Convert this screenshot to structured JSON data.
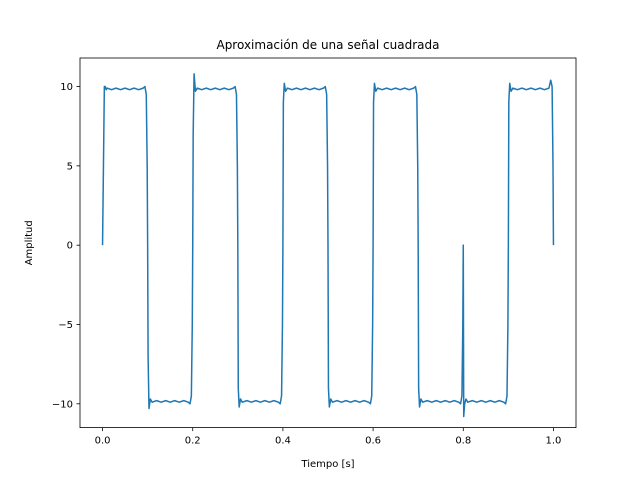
{
  "chart_data": {
    "type": "line",
    "title": "Aproximación de una señal cuadrada",
    "xlabel": "Tiempo [s]",
    "ylabel": "Amplitud",
    "xlim": [
      -0.05,
      1.05
    ],
    "ylim": [
      -11.5,
      11.8
    ],
    "xticks": [
      0.0,
      0.2,
      0.4,
      0.6,
      0.8,
      1.0
    ],
    "xtick_labels": [
      "0.0",
      "0.2",
      "0.4",
      "0.6",
      "0.8",
      "1.0"
    ],
    "yticks": [
      10,
      5,
      0,
      -5,
      -10
    ],
    "ytick_labels": [
      "10",
      "5",
      "0",
      "−5",
      "−10"
    ],
    "grid": false,
    "series": [
      {
        "color": "#1f77b4",
        "x": [
          0.0,
          0.002,
          0.004,
          0.006,
          0.008,
          0.01,
          0.02,
          0.03,
          0.04,
          0.05,
          0.06,
          0.07,
          0.08,
          0.09,
          0.094,
          0.097,
          0.099,
          0.1,
          0.101,
          0.103,
          0.106,
          0.11,
          0.12,
          0.13,
          0.14,
          0.15,
          0.16,
          0.17,
          0.18,
          0.19,
          0.194,
          0.197,
          0.199,
          0.2,
          0.201,
          0.203,
          0.206,
          0.21,
          0.22,
          0.23,
          0.24,
          0.25,
          0.26,
          0.27,
          0.28,
          0.29,
          0.294,
          0.297,
          0.299,
          0.3,
          0.301,
          0.303,
          0.306,
          0.31,
          0.32,
          0.33,
          0.34,
          0.35,
          0.36,
          0.37,
          0.38,
          0.39,
          0.394,
          0.397,
          0.399,
          0.4,
          0.401,
          0.403,
          0.406,
          0.41,
          0.42,
          0.43,
          0.44,
          0.45,
          0.46,
          0.47,
          0.48,
          0.49,
          0.494,
          0.497,
          0.499,
          0.5,
          0.501,
          0.503,
          0.506,
          0.51,
          0.52,
          0.53,
          0.54,
          0.55,
          0.56,
          0.57,
          0.58,
          0.59,
          0.594,
          0.597,
          0.599,
          0.6,
          0.601,
          0.603,
          0.606,
          0.61,
          0.62,
          0.63,
          0.64,
          0.65,
          0.66,
          0.67,
          0.68,
          0.69,
          0.694,
          0.697,
          0.699,
          0.7,
          0.701,
          0.703,
          0.706,
          0.71,
          0.72,
          0.73,
          0.74,
          0.75,
          0.76,
          0.77,
          0.78,
          0.79,
          0.794,
          0.797,
          0.799,
          0.8,
          0.801,
          0.803,
          0.806,
          0.81,
          0.82,
          0.83,
          0.84,
          0.85,
          0.86,
          0.87,
          0.88,
          0.89,
          0.894,
          0.897,
          0.899,
          0.9,
          0.901,
          0.903,
          0.906,
          0.91,
          0.92,
          0.93,
          0.94,
          0.95,
          0.96,
          0.97,
          0.98,
          0.99,
          0.994,
          0.997,
          0.999,
          1.0
        ],
        "y": [
          0.0,
          5.0,
          10.0,
          10.0,
          9.8,
          9.9,
          9.8,
          9.9,
          9.8,
          9.9,
          9.8,
          9.9,
          9.8,
          9.9,
          10.0,
          9.5,
          5.0,
          0.0,
          -7.0,
          -10.3,
          -9.7,
          -9.9,
          -9.8,
          -9.9,
          -9.8,
          -9.9,
          -9.8,
          -9.9,
          -9.8,
          -9.9,
          -10.0,
          -9.5,
          -5.0,
          0.0,
          7.0,
          10.8,
          9.7,
          9.9,
          9.8,
          9.9,
          9.8,
          9.9,
          9.8,
          9.9,
          9.8,
          9.9,
          10.0,
          9.5,
          5.0,
          0.0,
          -9.0,
          -10.2,
          -9.7,
          -9.9,
          -9.8,
          -9.9,
          -9.8,
          -9.9,
          -9.8,
          -9.9,
          -9.8,
          -9.9,
          -10.0,
          -9.5,
          -5.0,
          0.0,
          9.0,
          10.2,
          9.7,
          9.9,
          9.8,
          9.9,
          9.8,
          9.9,
          9.8,
          9.9,
          9.8,
          9.9,
          10.0,
          9.5,
          5.0,
          0.0,
          -9.0,
          -10.2,
          -9.7,
          -9.9,
          -9.8,
          -9.9,
          -9.8,
          -9.9,
          -9.8,
          -9.9,
          -9.8,
          -9.9,
          -10.0,
          -9.5,
          -5.0,
          0.0,
          9.0,
          10.2,
          9.7,
          9.9,
          9.8,
          9.9,
          9.8,
          9.9,
          9.8,
          9.9,
          9.8,
          9.9,
          10.0,
          9.5,
          5.0,
          0.0,
          -9.0,
          -10.2,
          -9.7,
          -9.9,
          -9.8,
          -9.9,
          -9.8,
          -9.9,
          -9.8,
          -9.9,
          -9.8,
          -9.9,
          -10.0,
          -9.5,
          -5.0,
          0.0,
          -10.8,
          -10.0,
          -9.7,
          -9.9,
          -9.8,
          -9.9,
          -9.8,
          -9.9,
          -9.8,
          -9.9,
          -9.8,
          -9.9,
          -10.0,
          -9.5,
          -5.0,
          0.0,
          9.0,
          10.2,
          9.7,
          9.9,
          9.8,
          9.9,
          9.8,
          9.9,
          9.8,
          9.9,
          9.8,
          9.9,
          10.4,
          10.0,
          5.0,
          0.0
        ]
      }
    ]
  }
}
